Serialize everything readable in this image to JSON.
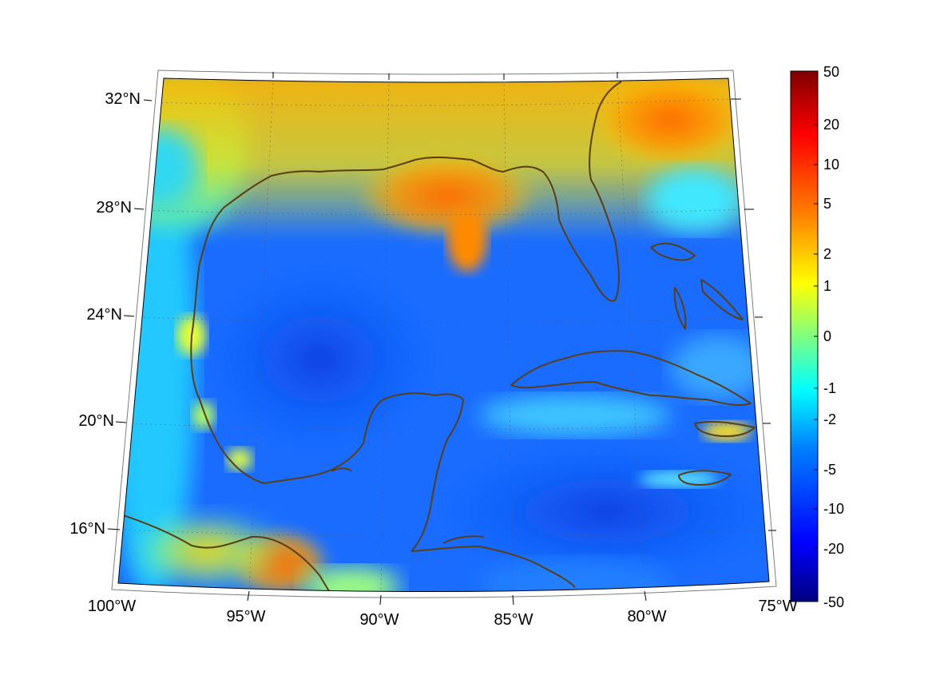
{
  "map": {
    "lon_labels": [
      "100°W",
      "95°W",
      "90°W",
      "85°W",
      "80°W",
      "75°W"
    ],
    "lat_labels": [
      "32°N",
      "28°N",
      "24°N",
      "20°N",
      "16°N"
    ],
    "coastline_color": "#5a3e12"
  },
  "colorbar": {
    "tick_labels": [
      "50",
      "20",
      "10",
      "5",
      "2",
      "1",
      "0",
      "-1",
      "-2",
      "-5",
      "-10",
      "-20",
      "-50"
    ],
    "colormap": "jet",
    "stops": [
      "#000080",
      "#0000ff",
      "#0080ff",
      "#00ffff",
      "#80ff80",
      "#ffff00",
      "#ff8000",
      "#ff0000",
      "#800000"
    ]
  },
  "chart_data": {
    "type": "heatmap",
    "projection": "conic",
    "lon_range": [
      -100,
      -75
    ],
    "lat_range": [
      14,
      33
    ],
    "colorbar_scale": "symmetric nonlinear",
    "colorbar_range": [
      -50,
      50
    ],
    "colorbar_ticks": [
      50,
      20,
      10,
      5,
      2,
      1,
      0,
      -1,
      -2,
      -5,
      -10,
      -20,
      -50
    ],
    "grid": true
  }
}
